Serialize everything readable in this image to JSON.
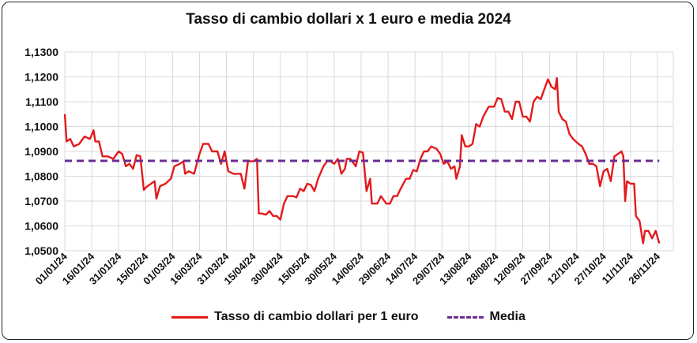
{
  "chart_data": {
    "type": "line",
    "title": "Tasso di cambio dollari x 1 euro e media 2024",
    "ylim": [
      1.05,
      1.13
    ],
    "yticks": [
      "1,0500",
      "1,0600",
      "1,0700",
      "1,0800",
      "1,0900",
      "1,1000",
      "1,1100",
      "1,1200",
      "1,1300"
    ],
    "xticks": [
      "01/01/24",
      "16/01/24",
      "31/01/24",
      "15/02/24",
      "01/03/24",
      "16/03/24",
      "31/03/24",
      "15/04/24",
      "30/04/24",
      "15/05/24",
      "30/05/24",
      "14/06/24",
      "29/06/24",
      "14/07/24",
      "29/07/24",
      "13/08/24",
      "28/08/24",
      "12/09/24",
      "27/09/24",
      "12/10/24",
      "27/10/24",
      "11/11/24",
      "26/11/24"
    ],
    "grid": true,
    "legend_position": "bottom",
    "colors": {
      "rate": "#e31a1c",
      "mean": "#6a2c91"
    },
    "series": [
      {
        "name": "Tasso di cambio dollari per 1 euro",
        "style": "solid",
        "points": [
          [
            "2024-01-01",
            1.105
          ],
          [
            "2024-01-02",
            1.094
          ],
          [
            "2024-01-04",
            1.095
          ],
          [
            "2024-01-06",
            1.092
          ],
          [
            "2024-01-09",
            1.093
          ],
          [
            "2024-01-12",
            1.096
          ],
          [
            "2024-01-15",
            1.095
          ],
          [
            "2024-01-17",
            1.0985
          ],
          [
            "2024-01-18",
            1.094
          ],
          [
            "2024-01-20",
            1.094
          ],
          [
            "2024-01-22",
            1.088
          ],
          [
            "2024-01-25",
            1.088
          ],
          [
            "2024-01-28",
            1.087
          ],
          [
            "2024-01-31",
            1.09
          ],
          [
            "2024-02-02",
            1.089
          ],
          [
            "2024-02-04",
            1.084
          ],
          [
            "2024-02-06",
            1.085
          ],
          [
            "2024-02-08",
            1.083
          ],
          [
            "2024-02-10",
            1.0885
          ],
          [
            "2024-02-12",
            1.088
          ],
          [
            "2024-02-14",
            1.0745
          ],
          [
            "2024-02-16",
            1.076
          ],
          [
            "2024-02-18",
            1.077
          ],
          [
            "2024-02-20",
            1.078
          ],
          [
            "2024-02-21",
            1.071
          ],
          [
            "2024-02-23",
            1.076
          ],
          [
            "2024-02-26",
            1.077
          ],
          [
            "2024-02-29",
            1.079
          ],
          [
            "2024-03-02",
            1.084
          ],
          [
            "2024-03-05",
            1.085
          ],
          [
            "2024-03-07",
            1.086
          ],
          [
            "2024-03-08",
            1.081
          ],
          [
            "2024-03-10",
            1.082
          ],
          [
            "2024-03-13",
            1.081
          ],
          [
            "2024-03-16",
            1.089
          ],
          [
            "2024-03-18",
            1.093
          ],
          [
            "2024-03-21",
            1.093
          ],
          [
            "2024-03-23",
            1.09
          ],
          [
            "2024-03-26",
            1.09
          ],
          [
            "2024-03-28",
            1.085
          ],
          [
            "2024-03-30",
            1.09
          ],
          [
            "2024-04-01",
            1.082
          ],
          [
            "2024-04-04",
            1.081
          ],
          [
            "2024-04-08",
            1.081
          ],
          [
            "2024-04-10",
            1.075
          ],
          [
            "2024-04-12",
            1.086
          ],
          [
            "2024-04-15",
            1.086
          ],
          [
            "2024-04-17",
            1.087
          ],
          [
            "2024-04-18",
            1.065
          ],
          [
            "2024-04-20",
            1.065
          ],
          [
            "2024-04-22",
            1.0645
          ],
          [
            "2024-04-24",
            1.066
          ],
          [
            "2024-04-26",
            1.064
          ],
          [
            "2024-04-28",
            1.064
          ],
          [
            "2024-04-30",
            1.0625
          ],
          [
            "2024-05-02",
            1.069
          ],
          [
            "2024-05-04",
            1.072
          ],
          [
            "2024-05-07",
            1.072
          ],
          [
            "2024-05-09",
            1.0715
          ],
          [
            "2024-05-11",
            1.075
          ],
          [
            "2024-05-13",
            1.074
          ],
          [
            "2024-05-15",
            1.077
          ],
          [
            "2024-05-17",
            1.0765
          ],
          [
            "2024-05-19",
            1.074
          ],
          [
            "2024-05-21",
            1.079
          ],
          [
            "2024-05-24",
            1.084
          ],
          [
            "2024-05-26",
            1.086
          ],
          [
            "2024-05-28",
            1.086
          ],
          [
            "2024-05-30",
            1.085
          ],
          [
            "2024-06-01",
            1.087
          ],
          [
            "2024-06-03",
            1.081
          ],
          [
            "2024-06-05",
            1.083
          ],
          [
            "2024-06-06",
            1.087
          ],
          [
            "2024-06-08",
            1.087
          ],
          [
            "2024-06-11",
            1.084
          ],
          [
            "2024-06-13",
            1.09
          ],
          [
            "2024-06-15",
            1.0895
          ],
          [
            "2024-06-17",
            1.074
          ],
          [
            "2024-06-19",
            1.079
          ],
          [
            "2024-06-20",
            1.069
          ],
          [
            "2024-06-23",
            1.069
          ],
          [
            "2024-06-25",
            1.072
          ],
          [
            "2024-06-28",
            1.069
          ],
          [
            "2024-06-30",
            1.069
          ],
          [
            "2024-07-02",
            1.072
          ],
          [
            "2024-07-04",
            1.072
          ],
          [
            "2024-07-06",
            1.075
          ],
          [
            "2024-07-09",
            1.079
          ],
          [
            "2024-07-11",
            1.079
          ],
          [
            "2024-07-13",
            1.0825
          ],
          [
            "2024-07-15",
            1.082
          ],
          [
            "2024-07-17",
            1.087
          ],
          [
            "2024-07-19",
            1.09
          ],
          [
            "2024-07-21",
            1.09
          ],
          [
            "2024-07-23",
            1.092
          ],
          [
            "2024-07-26",
            1.091
          ],
          [
            "2024-07-28",
            1.089
          ],
          [
            "2024-07-30",
            1.085
          ],
          [
            "2024-08-01",
            1.086
          ],
          [
            "2024-08-03",
            1.083
          ],
          [
            "2024-08-05",
            1.084
          ],
          [
            "2024-08-06",
            1.079
          ],
          [
            "2024-08-08",
            1.084
          ],
          [
            "2024-08-09",
            1.0965
          ],
          [
            "2024-08-11",
            1.092
          ],
          [
            "2024-08-13",
            1.092
          ],
          [
            "2024-08-15",
            1.093
          ],
          [
            "2024-08-17",
            1.101
          ],
          [
            "2024-08-19",
            1.1
          ],
          [
            "2024-08-21",
            1.104
          ],
          [
            "2024-08-24",
            1.108
          ],
          [
            "2024-08-27",
            1.108
          ],
          [
            "2024-08-29",
            1.1115
          ],
          [
            "2024-08-31",
            1.111
          ],
          [
            "2024-09-02",
            1.106
          ],
          [
            "2024-09-04",
            1.106
          ],
          [
            "2024-09-06",
            1.103
          ],
          [
            "2024-09-08",
            1.11
          ],
          [
            "2024-09-10",
            1.11
          ],
          [
            "2024-09-12",
            1.104
          ],
          [
            "2024-09-14",
            1.104
          ],
          [
            "2024-09-16",
            1.102
          ],
          [
            "2024-09-18",
            1.11
          ],
          [
            "2024-09-20",
            1.112
          ],
          [
            "2024-09-22",
            1.111
          ],
          [
            "2024-09-24",
            1.115
          ],
          [
            "2024-09-26",
            1.119
          ],
          [
            "2024-09-28",
            1.116
          ],
          [
            "2024-09-30",
            1.115
          ],
          [
            "2024-10-01",
            1.1195
          ],
          [
            "2024-10-02",
            1.106
          ],
          [
            "2024-10-04",
            1.103
          ],
          [
            "2024-10-06",
            1.102
          ],
          [
            "2024-10-08",
            1.097
          ],
          [
            "2024-10-10",
            1.095
          ],
          [
            "2024-10-13",
            1.093
          ],
          [
            "2024-10-15",
            1.092
          ],
          [
            "2024-10-17",
            1.089
          ],
          [
            "2024-10-19",
            1.085
          ],
          [
            "2024-10-21",
            1.085
          ],
          [
            "2024-10-23",
            1.084
          ],
          [
            "2024-10-25",
            1.076
          ],
          [
            "2024-10-27",
            1.082
          ],
          [
            "2024-10-29",
            1.083
          ],
          [
            "2024-10-31",
            1.078
          ],
          [
            "2024-11-02",
            1.088
          ],
          [
            "2024-11-04",
            1.089
          ],
          [
            "2024-11-06",
            1.09
          ],
          [
            "2024-11-07",
            1.088
          ],
          [
            "2024-11-08",
            1.07
          ],
          [
            "2024-11-09",
            1.078
          ],
          [
            "2024-11-11",
            1.077
          ],
          [
            "2024-11-13",
            1.077
          ],
          [
            "2024-11-14",
            1.064
          ],
          [
            "2024-11-16",
            1.062
          ],
          [
            "2024-11-18",
            1.053
          ],
          [
            "2024-11-19",
            1.058
          ],
          [
            "2024-11-21",
            1.058
          ],
          [
            "2024-11-23",
            1.055
          ],
          [
            "2024-11-25",
            1.058
          ],
          [
            "2024-11-27",
            1.053
          ]
        ]
      },
      {
        "name": "Media",
        "style": "dashed",
        "points": [
          [
            "2024-01-01",
            1.0862
          ],
          [
            "2024-11-27",
            1.0862
          ]
        ]
      }
    ]
  }
}
